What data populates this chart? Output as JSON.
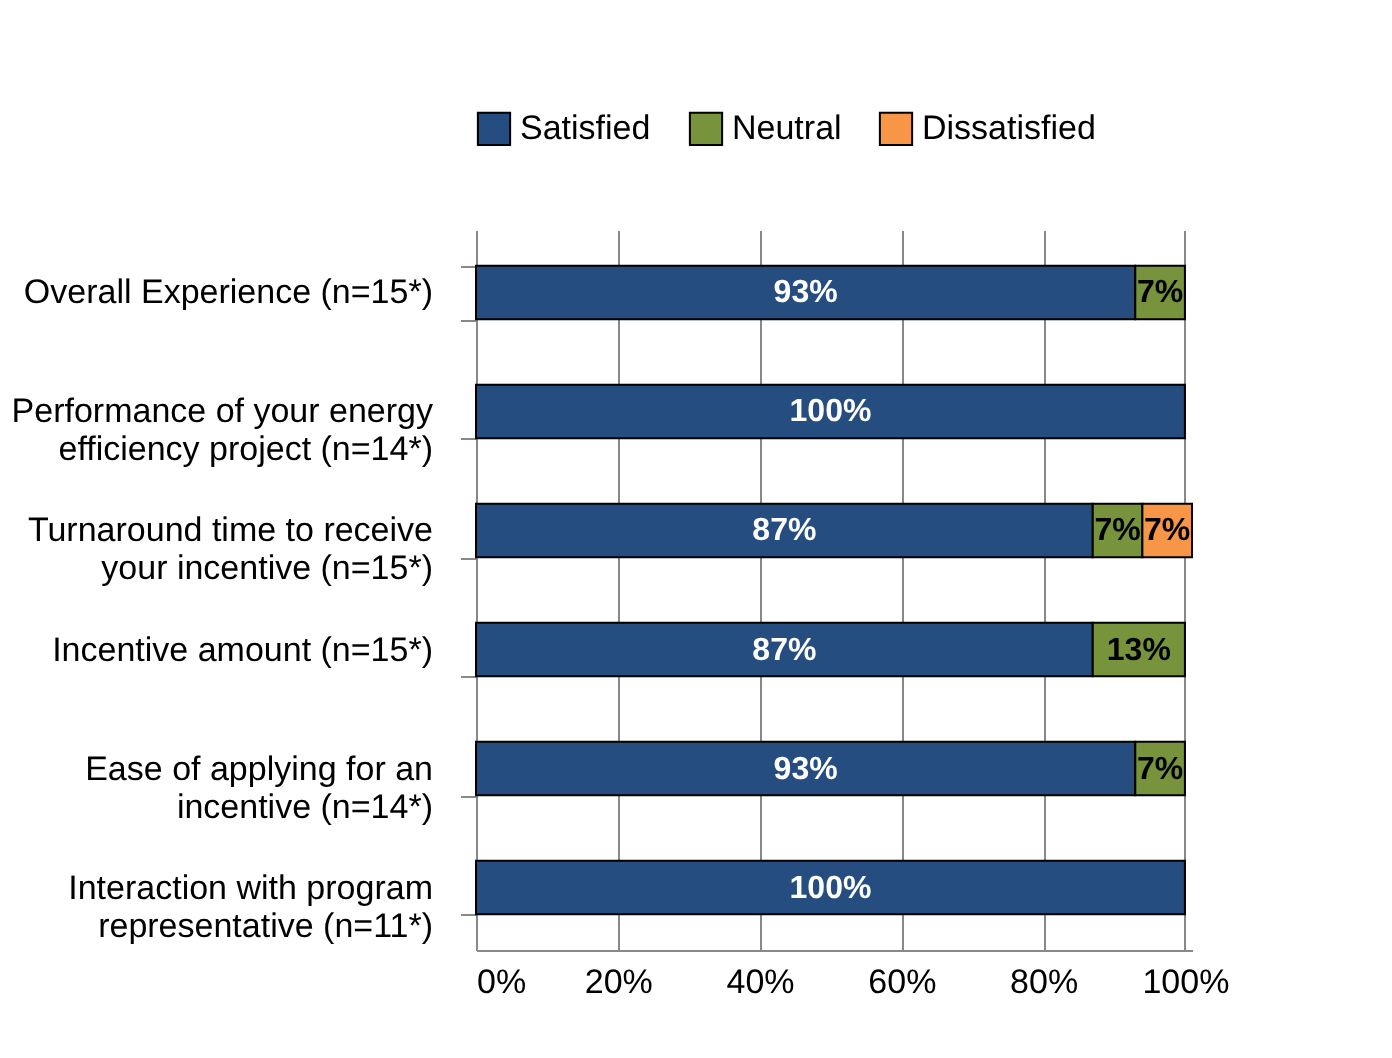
{
  "chart_data": {
    "type": "bar",
    "orientation": "horizontal",
    "stacked": true,
    "categories": [
      "Overall Experience (n=15*)",
      "Performance of your energy efficiency project (n=14*)",
      "Turnaround time to receive your incentive (n=15*)",
      "Incentive amount (n=15*)",
      "Ease of applying for an incentive (n=14*)",
      "Interaction with program representative (n=11*)"
    ],
    "series": [
      {
        "name": "Satisfied",
        "color": "#254d80",
        "values": [
          93,
          100,
          87,
          87,
          93,
          100
        ],
        "value_labels": [
          "93%",
          "100%",
          "87%",
          "87%",
          "93%",
          "100%"
        ]
      },
      {
        "name": "Neutral",
        "color": "#77933c",
        "values": [
          7,
          0,
          7,
          13,
          7,
          0
        ],
        "value_labels": [
          "7%",
          null,
          "7%",
          "13%",
          "7%",
          null
        ]
      },
      {
        "name": "Dissatisfied",
        "color": "#f79646",
        "values": [
          0,
          0,
          7,
          0,
          0,
          0
        ],
        "value_labels": [
          null,
          null,
          "7%",
          null,
          null,
          null
        ]
      }
    ],
    "xlim": [
      0,
      101
    ],
    "xticks": [
      {
        "value": 0,
        "label": "0%"
      },
      {
        "value": 20,
        "label": "20%"
      },
      {
        "value": 40,
        "label": "40%"
      },
      {
        "value": 60,
        "label": "60%"
      },
      {
        "value": 80,
        "label": "80%"
      },
      {
        "value": 100,
        "label": "100%"
      }
    ],
    "grid": "x",
    "legend": "top"
  }
}
